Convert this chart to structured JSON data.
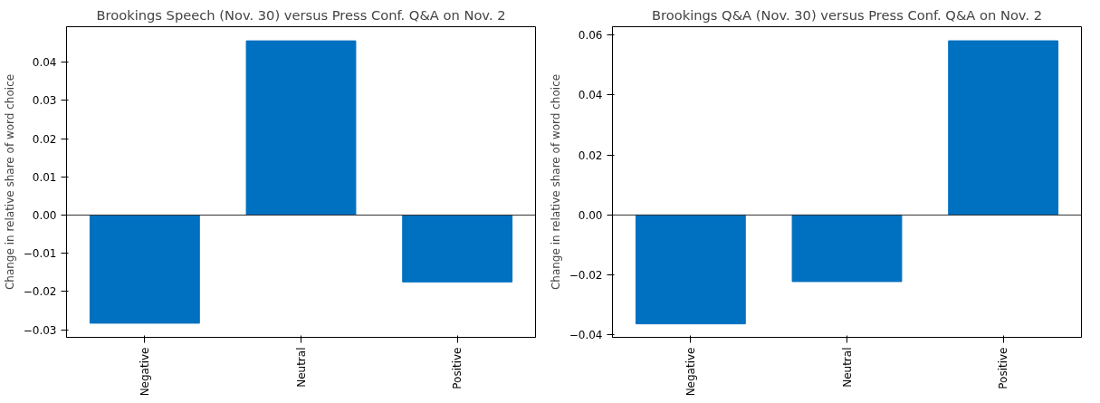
{
  "chart_data": [
    {
      "type": "bar",
      "title": "Brookings Speech (Nov. 30) versus Press Conf. Q&A on Nov. 2",
      "ylabel": "Change in relative share of word choice",
      "categories": [
        "Negative",
        "Neutral",
        "Positive"
      ],
      "values": [
        -0.0283,
        0.0456,
        -0.0175
      ],
      "color": "#0070c0",
      "ylim": [
        -0.032,
        0.0493
      ],
      "yticks": [
        {
          "value": -0.03,
          "label": "−0.03"
        },
        {
          "value": -0.02,
          "label": "−0.02"
        },
        {
          "value": -0.01,
          "label": "−0.01"
        },
        {
          "value": 0,
          "label": "0.00"
        },
        {
          "value": 0.01,
          "label": "0.01"
        },
        {
          "value": 0.02,
          "label": "0.02"
        },
        {
          "value": 0.03,
          "label": "0.03"
        },
        {
          "value": 0.04,
          "label": "0.04"
        }
      ],
      "ref_lines": [
        {
          "axis": "y",
          "value": 0,
          "color": "#333333"
        }
      ],
      "grid": false
    },
    {
      "type": "bar",
      "title": "Brookings Q&A (Nov. 30) versus Press Conf. Q&A on Nov. 2",
      "ylabel": "Change in relative share of word choice",
      "categories": [
        "Negative",
        "Neutral",
        "Positive"
      ],
      "values": [
        -0.0363,
        -0.0222,
        0.0581
      ],
      "color": "#0070c0",
      "ylim": [
        -0.0408,
        0.0628
      ],
      "yticks": [
        {
          "value": -0.04,
          "label": "−0.04"
        },
        {
          "value": -0.02,
          "label": "−0.02"
        },
        {
          "value": 0,
          "label": "0.00"
        },
        {
          "value": 0.02,
          "label": "0.02"
        },
        {
          "value": 0.04,
          "label": "0.04"
        },
        {
          "value": 0.06,
          "label": "0.06"
        }
      ],
      "ref_lines": [
        {
          "axis": "y",
          "value": 0,
          "color": "#333333"
        }
      ],
      "grid": false
    }
  ]
}
